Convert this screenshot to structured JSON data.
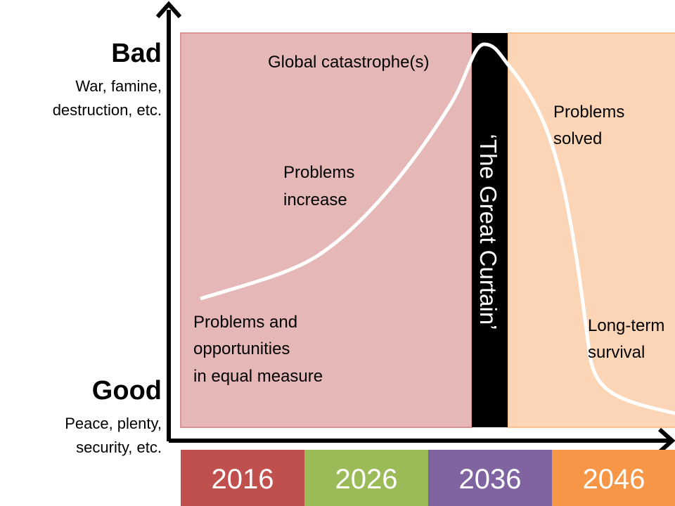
{
  "y_axis": {
    "top": {
      "label": "Bad",
      "description": [
        "War, famine,",
        "destruction, etc."
      ]
    },
    "bottom": {
      "label": "Good",
      "description": [
        "Peace, plenty,",
        "security, etc."
      ]
    }
  },
  "annotations": {
    "start": [
      "Problems and",
      "opportunities",
      "in equal measure"
    ],
    "rise": [
      "Problems",
      "increase"
    ],
    "peak": [
      "Global catastrophe(s)"
    ],
    "fall": [
      "Problems",
      "solved"
    ],
    "end": [
      "Long-term",
      "survival"
    ]
  },
  "curtain": {
    "label": "‘The Great Curtain’"
  },
  "timeline": {
    "years": [
      "2016",
      "2026",
      "2036",
      "2046"
    ]
  }
}
